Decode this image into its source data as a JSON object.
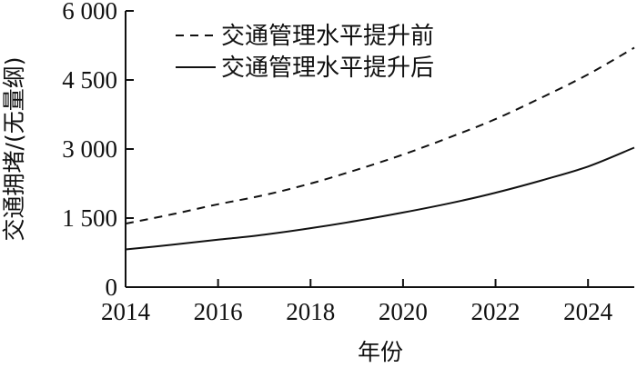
{
  "chart_data": {
    "type": "line",
    "xlabel": "年份",
    "ylabel": "交通拥堵/(无量纲)",
    "xlim": [
      2014,
      2025
    ],
    "ylim": [
      0,
      6000
    ],
    "xticks": [
      2014,
      2016,
      2018,
      2020,
      2022,
      2024
    ],
    "xtick_labels": [
      "2014",
      "2016",
      "2018",
      "2020",
      "2022",
      "2024"
    ],
    "yticks": [
      0,
      1500,
      3000,
      4500,
      6000
    ],
    "ytick_labels": [
      "0",
      "1 500",
      "3 000",
      "4 500",
      "6 000"
    ],
    "legend_position": "top-left",
    "grid": false,
    "series": [
      {
        "name": "交通管理水平提升前",
        "style": "dashed",
        "color": "#111111",
        "x": [
          2014,
          2015,
          2016,
          2017,
          2018,
          2019,
          2020,
          2021,
          2022,
          2023,
          2024,
          2025
        ],
        "values": [
          1380,
          1580,
          1800,
          2000,
          2250,
          2550,
          2880,
          3250,
          3650,
          4120,
          4620,
          5200
        ]
      },
      {
        "name": "交通管理水平提升后",
        "style": "solid",
        "color": "#111111",
        "x": [
          2014,
          2015,
          2016,
          2017,
          2018,
          2019,
          2020,
          2021,
          2022,
          2023,
          2024,
          2025
        ],
        "values": [
          820,
          920,
          1030,
          1140,
          1280,
          1440,
          1620,
          1820,
          2050,
          2320,
          2620,
          3030
        ]
      }
    ]
  }
}
